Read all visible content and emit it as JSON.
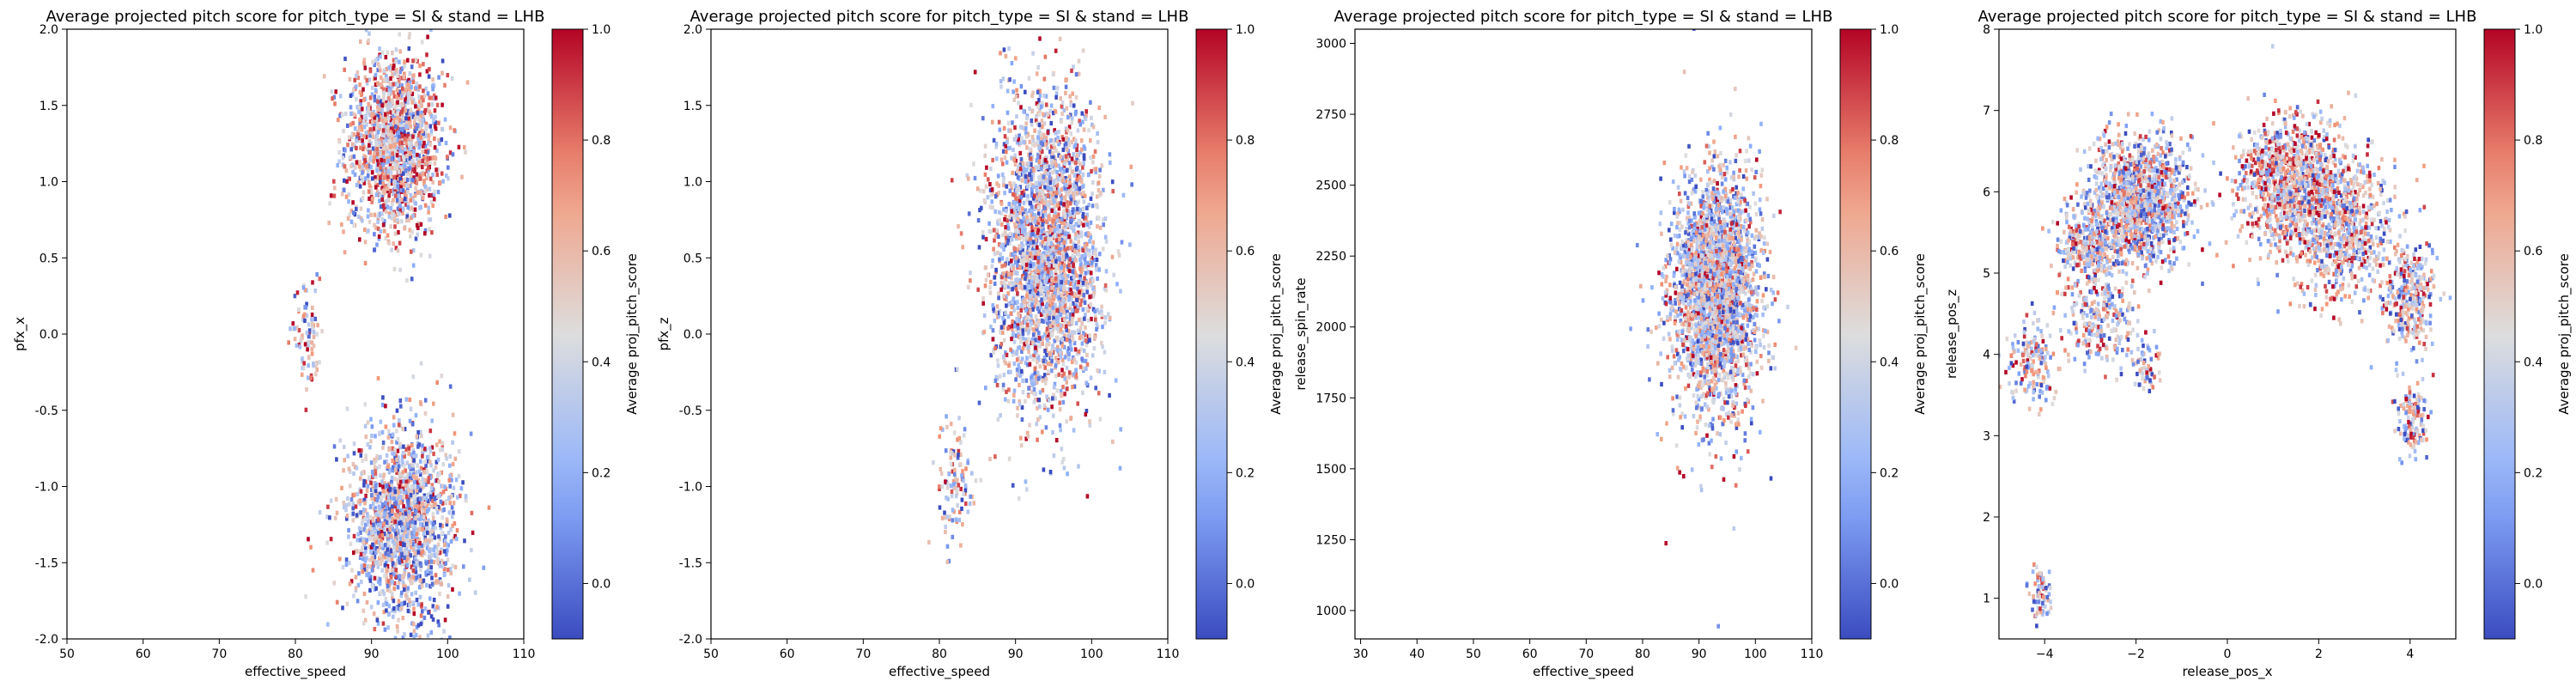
{
  "colorbar_label": "Average proj_pitch_score",
  "colormap": {
    "low": "#3b4cc0",
    "mid": "#dddddd",
    "high": "#b40426"
  },
  "chart_data": [
    {
      "type": "heatmap",
      "title": "Average projected pitch score for pitch_type = SI & stand = LHB",
      "xlabel": "effective_speed",
      "ylabel": "pfx_x",
      "xlim": [
        50,
        110
      ],
      "ylim": [
        -2.0,
        2.0
      ],
      "xticks": [
        "50",
        "60",
        "70",
        "80",
        "90",
        "100",
        "110"
      ],
      "yticks": [
        "-2.0",
        "-1.5",
        "-1.0",
        "-0.5",
        "0.0",
        "0.5",
        "1.0",
        "1.5",
        "2.0"
      ],
      "colorbar": {
        "range": [
          -0.1,
          1.0
        ],
        "ticks": [
          "0.0",
          "0.2",
          "0.4",
          "0.6",
          "0.8",
          "1.0"
        ]
      },
      "clusters": [
        {
          "cx": 93,
          "cy": 1.25,
          "sx": 3.2,
          "sy": 0.3,
          "n": 1500,
          "mean": 0.56
        },
        {
          "cx": 94,
          "cy": -1.25,
          "sx": 3.5,
          "sy": 0.32,
          "n": 1600,
          "mean": 0.42
        },
        {
          "cx": 81.5,
          "cy": -0.05,
          "sx": 1.0,
          "sy": 0.16,
          "n": 90,
          "mean": 0.55
        }
      ]
    },
    {
      "type": "heatmap",
      "title": "Average projected pitch score for pitch_type = SI & stand = LHB",
      "xlabel": "effective_speed",
      "ylabel": "pfx_z",
      "xlim": [
        50,
        110
      ],
      "ylim": [
        -2.0,
        2.0
      ],
      "xticks": [
        "50",
        "60",
        "70",
        "80",
        "90",
        "100",
        "110"
      ],
      "yticks": [
        "-2.0",
        "-1.5",
        "-1.0",
        "-0.5",
        "0.0",
        "0.5",
        "1.0",
        "1.5",
        "2.0"
      ],
      "colorbar": {
        "range": [
          -0.1,
          1.0
        ],
        "ticks": [
          "0.0",
          "0.2",
          "0.4",
          "0.6",
          "0.8",
          "1.0"
        ]
      },
      "clusters": [
        {
          "cx": 94,
          "cy": 0.55,
          "sx": 3.6,
          "sy": 0.5,
          "n": 2800,
          "mean": 0.47
        },
        {
          "cx": 82,
          "cy": -1.0,
          "sx": 1.2,
          "sy": 0.2,
          "n": 110,
          "mean": 0.45
        }
      ]
    },
    {
      "type": "heatmap",
      "title": "Average projected pitch score for pitch_type = SI & stand = LHB",
      "xlabel": "effective_speed",
      "ylabel": "release_spin_rate",
      "xlim": [
        29,
        110
      ],
      "ylim": [
        900,
        3050
      ],
      "xticks": [
        "30",
        "40",
        "50",
        "60",
        "70",
        "80",
        "90",
        "100",
        "110"
      ],
      "xtick_values": [
        30,
        40,
        50,
        60,
        70,
        80,
        90,
        100,
        110
      ],
      "yticks": [
        "1000",
        "1250",
        "1500",
        "1750",
        "2000",
        "2250",
        "2500",
        "2750",
        "3000"
      ],
      "ytick_values": [
        1000,
        1250,
        1500,
        1750,
        2000,
        2250,
        2500,
        2750,
        3000
      ],
      "colorbar": {
        "range": [
          -0.1,
          1.0
        ],
        "ticks": [
          "0.0",
          "0.2",
          "0.4",
          "0.6",
          "0.8",
          "1.0"
        ]
      },
      "clusters": [
        {
          "cx": 93,
          "cy": 2130,
          "sx": 3.8,
          "sy": 190,
          "n": 2600,
          "mean": 0.45
        },
        {
          "cx": 92,
          "cy": 2100,
          "sx": 4.5,
          "sy": 420,
          "n": 160,
          "mean": 0.5
        }
      ]
    },
    {
      "type": "heatmap",
      "title": "Average projected pitch score for pitch_type = SI & stand = LHB",
      "xlabel": "release_pos_x",
      "ylabel": "release_pos_z",
      "xlim": [
        -5.0,
        5.0
      ],
      "ylim": [
        0.5,
        8.0
      ],
      "xticks": [
        "−4",
        "−2",
        "0",
        "2",
        "4"
      ],
      "xtick_values": [
        -4,
        -2,
        0,
        2,
        4
      ],
      "yticks": [
        "1",
        "2",
        "3",
        "4",
        "5",
        "6",
        "7",
        "8"
      ],
      "ytick_values": [
        1,
        2,
        3,
        4,
        5,
        6,
        7,
        8
      ],
      "colorbar": {
        "range": [
          -0.1,
          1.0
        ],
        "ticks": [
          "0.0",
          "0.2",
          "0.4",
          "0.6",
          "0.8",
          "1.0"
        ]
      },
      "clusters": [
        {
          "cx": -1.9,
          "cy": 5.9,
          "sx": 0.55,
          "sy": 0.38,
          "n": 1300,
          "mean": 0.45
        },
        {
          "cx": -3.0,
          "cy": 5.35,
          "sx": 0.35,
          "sy": 0.25,
          "n": 350,
          "mean": 0.5
        },
        {
          "cx": -2.8,
          "cy": 4.4,
          "sx": 0.45,
          "sy": 0.3,
          "n": 250,
          "mean": 0.48
        },
        {
          "cx": -4.3,
          "cy": 3.9,
          "sx": 0.25,
          "sy": 0.25,
          "n": 150,
          "mean": 0.5
        },
        {
          "cx": -1.8,
          "cy": 3.8,
          "sx": 0.15,
          "sy": 0.15,
          "n": 60,
          "mean": 0.45
        },
        {
          "cx": 1.4,
          "cy": 6.1,
          "sx": 0.6,
          "sy": 0.4,
          "n": 1100,
          "mean": 0.58
        },
        {
          "cx": 2.5,
          "cy": 5.5,
          "sx": 0.55,
          "sy": 0.45,
          "n": 700,
          "mean": 0.5
        },
        {
          "cx": 4.0,
          "cy": 4.7,
          "sx": 0.3,
          "sy": 0.35,
          "n": 300,
          "mean": 0.5
        },
        {
          "cx": 4.05,
          "cy": 3.2,
          "sx": 0.17,
          "sy": 0.2,
          "n": 120,
          "mean": 0.45
        },
        {
          "cx": -4.1,
          "cy": 1.05,
          "sx": 0.12,
          "sy": 0.13,
          "n": 70,
          "mean": 0.45
        }
      ]
    }
  ]
}
